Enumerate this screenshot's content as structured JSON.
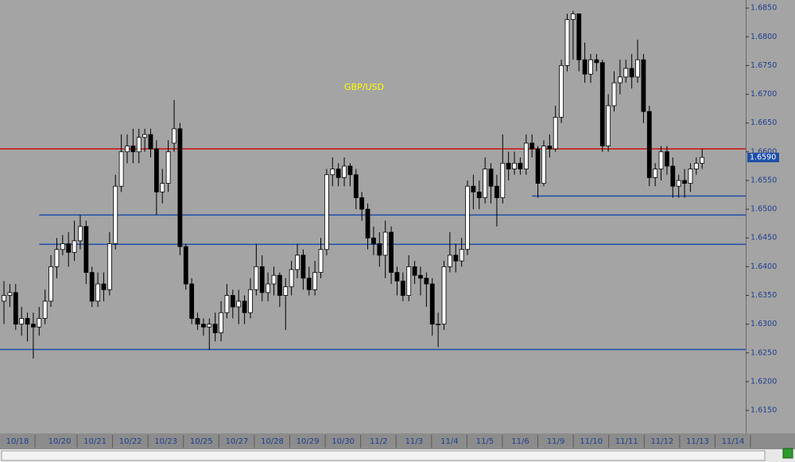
{
  "chart_data": {
    "type": "candlestick",
    "title": "GBP/USD",
    "title_color": "#ffff00",
    "up_color": "#ffffff",
    "down_color": "#000000",
    "ylim": [
      1.611,
      1.6864
    ],
    "yticks": [
      {
        "value": 1.615,
        "label": "1.6150"
      },
      {
        "value": 1.62,
        "label": "1.6200"
      },
      {
        "value": 1.625,
        "label": "1.6250"
      },
      {
        "value": 1.63,
        "label": "1.6300"
      },
      {
        "value": 1.635,
        "label": "1.6350"
      },
      {
        "value": 1.64,
        "label": "1.6400"
      },
      {
        "value": 1.645,
        "label": "1.6450"
      },
      {
        "value": 1.65,
        "label": "1.6500"
      },
      {
        "value": 1.655,
        "label": "1.6550"
      },
      {
        "value": 1.66,
        "label": "1.6600"
      },
      {
        "value": 1.665,
        "label": "1.6650"
      },
      {
        "value": 1.67,
        "label": "1.6700"
      },
      {
        "value": 1.675,
        "label": "1.6750"
      },
      {
        "value": 1.68,
        "label": "1.6800"
      },
      {
        "value": 1.685,
        "label": "1.6850"
      }
    ],
    "last_price": {
      "value": 1.659,
      "label": "1.6590"
    },
    "xlabels": [
      "10/18",
      "10/20",
      "10/21",
      "10/22",
      "10/23",
      "10/25",
      "10/27",
      "10/28",
      "10/29",
      "10/30",
      "11/2",
      "11/3",
      "11/4",
      "11/5",
      "11/6",
      "11/9",
      "11/10",
      "11/11",
      "11/12",
      "11/13",
      "11/14"
    ],
    "levels": [
      {
        "value": 1.6605,
        "color": "#cc1111"
      },
      {
        "value": 1.6523,
        "color": "#1f4fa8"
      },
      {
        "value": 1.649,
        "color": "#1f4fa8"
      },
      {
        "value": 1.6439,
        "color": "#1f4fa8"
      },
      {
        "value": 1.6256,
        "color": "#1f4fa8"
      }
    ],
    "ohlc": [
      [
        1.634,
        1.6375,
        1.63,
        1.635
      ],
      [
        1.635,
        1.637,
        1.633,
        1.6355
      ],
      [
        1.6355,
        1.637,
        1.629,
        1.63
      ],
      [
        1.63,
        1.633,
        1.628,
        1.631
      ],
      [
        1.631,
        1.632,
        1.627,
        1.63
      ],
      [
        1.63,
        1.632,
        1.624,
        1.6295
      ],
      [
        1.6295,
        1.633,
        1.628,
        1.631
      ],
      [
        1.631,
        1.636,
        1.63,
        1.634
      ],
      [
        1.634,
        1.642,
        1.633,
        1.64
      ],
      [
        1.64,
        1.645,
        1.638,
        1.643
      ],
      [
        1.643,
        1.6455,
        1.642,
        1.644
      ],
      [
        1.644,
        1.646,
        1.64,
        1.6425
      ],
      [
        1.6425,
        1.648,
        1.641,
        1.6445
      ],
      [
        1.6445,
        1.649,
        1.643,
        1.647
      ],
      [
        1.647,
        1.648,
        1.637,
        1.639
      ],
      [
        1.639,
        1.64,
        1.633,
        1.634
      ],
      [
        1.634,
        1.639,
        1.633,
        1.637
      ],
      [
        1.637,
        1.639,
        1.634,
        1.636
      ],
      [
        1.636,
        1.646,
        1.635,
        1.644
      ],
      [
        1.644,
        1.656,
        1.643,
        1.654
      ],
      [
        1.654,
        1.663,
        1.653,
        1.66
      ],
      [
        1.66,
        1.663,
        1.658,
        1.661
      ],
      [
        1.661,
        1.664,
        1.658,
        1.66
      ],
      [
        1.66,
        1.664,
        1.658,
        1.6625
      ],
      [
        1.6625,
        1.664,
        1.66,
        1.663
      ],
      [
        1.663,
        1.664,
        1.659,
        1.6605
      ],
      [
        1.6605,
        1.662,
        1.649,
        1.653
      ],
      [
        1.653,
        1.657,
        1.651,
        1.6545
      ],
      [
        1.6545,
        1.662,
        1.653,
        1.66
      ],
      [
        1.6615,
        1.669,
        1.66,
        1.664
      ],
      [
        1.664,
        1.665,
        1.642,
        1.6435
      ],
      [
        1.6435,
        1.644,
        1.636,
        1.637
      ],
      [
        1.637,
        1.638,
        1.63,
        1.631
      ],
      [
        1.631,
        1.632,
        1.629,
        1.63
      ],
      [
        1.63,
        1.631,
        1.628,
        1.6295
      ],
      [
        1.6295,
        1.631,
        1.6255,
        1.63
      ],
      [
        1.63,
        1.632,
        1.627,
        1.6285
      ],
      [
        1.6285,
        1.634,
        1.627,
        1.632
      ],
      [
        1.632,
        1.637,
        1.631,
        1.635
      ],
      [
        1.635,
        1.636,
        1.631,
        1.633
      ],
      [
        1.633,
        1.636,
        1.63,
        1.634
      ],
      [
        1.634,
        1.635,
        1.63,
        1.632
      ],
      [
        1.632,
        1.638,
        1.631,
        1.636
      ],
      [
        1.636,
        1.644,
        1.635,
        1.64
      ],
      [
        1.64,
        1.642,
        1.634,
        1.6355
      ],
      [
        1.6355,
        1.639,
        1.634,
        1.637
      ],
      [
        1.637,
        1.64,
        1.635,
        1.6385
      ],
      [
        1.6385,
        1.639,
        1.633,
        1.635
      ],
      [
        1.635,
        1.638,
        1.629,
        1.6365
      ],
      [
        1.6365,
        1.641,
        1.635,
        1.6395
      ],
      [
        1.6395,
        1.644,
        1.638,
        1.642
      ],
      [
        1.642,
        1.643,
        1.636,
        1.638
      ],
      [
        1.638,
        1.64,
        1.635,
        1.636
      ],
      [
        1.636,
        1.641,
        1.635,
        1.639
      ],
      [
        1.639,
        1.645,
        1.638,
        1.643
      ],
      [
        1.643,
        1.657,
        1.642,
        1.656
      ],
      [
        1.656,
        1.659,
        1.654,
        1.657
      ],
      [
        1.657,
        1.658,
        1.654,
        1.6555
      ],
      [
        1.6555,
        1.659,
        1.654,
        1.6575
      ],
      [
        1.6575,
        1.658,
        1.654,
        1.656
      ],
      [
        1.656,
        1.657,
        1.65,
        1.652
      ],
      [
        1.652,
        1.653,
        1.648,
        1.65
      ],
      [
        1.65,
        1.651,
        1.643,
        1.645
      ],
      [
        1.645,
        1.647,
        1.642,
        1.644
      ],
      [
        1.644,
        1.646,
        1.64,
        1.642
      ],
      [
        1.642,
        1.648,
        1.638,
        1.646
      ],
      [
        1.646,
        1.647,
        1.637,
        1.639
      ],
      [
        1.639,
        1.64,
        1.635,
        1.6375
      ],
      [
        1.6375,
        1.639,
        1.634,
        1.635
      ],
      [
        1.635,
        1.642,
        1.634,
        1.64
      ],
      [
        1.64,
        1.641,
        1.637,
        1.6385
      ],
      [
        1.6385,
        1.64,
        1.635,
        1.638
      ],
      [
        1.638,
        1.639,
        1.633,
        1.637
      ],
      [
        1.637,
        1.638,
        1.628,
        1.63
      ],
      [
        1.63,
        1.632,
        1.626,
        1.63
      ],
      [
        1.63,
        1.641,
        1.629,
        1.64
      ],
      [
        1.64,
        1.646,
        1.639,
        1.642
      ],
      [
        1.642,
        1.644,
        1.639,
        1.641
      ],
      [
        1.641,
        1.645,
        1.64,
        1.643
      ],
      [
        1.643,
        1.655,
        1.642,
        1.654
      ],
      [
        1.654,
        1.656,
        1.65,
        1.653
      ],
      [
        1.653,
        1.655,
        1.65,
        1.652
      ],
      [
        1.652,
        1.659,
        1.651,
        1.657
      ],
      [
        1.657,
        1.658,
        1.651,
        1.654
      ],
      [
        1.654,
        1.656,
        1.647,
        1.652
      ],
      [
        1.652,
        1.663,
        1.651,
        1.658
      ],
      [
        1.658,
        1.66,
        1.655,
        1.657
      ],
      [
        1.657,
        1.66,
        1.656,
        1.658
      ],
      [
        1.658,
        1.659,
        1.656,
        1.657
      ],
      [
        1.657,
        1.663,
        1.656,
        1.6615
      ],
      [
        1.6615,
        1.663,
        1.659,
        1.6605
      ],
      [
        1.6605,
        1.661,
        1.652,
        1.6545
      ],
      [
        1.6545,
        1.662,
        1.654,
        1.661
      ],
      [
        1.661,
        1.663,
        1.659,
        1.6605
      ],
      [
        1.6605,
        1.668,
        1.66,
        1.666
      ],
      [
        1.666,
        1.676,
        1.665,
        1.675
      ],
      [
        1.675,
        1.684,
        1.674,
        1.683
      ],
      [
        1.683,
        1.6845,
        1.676,
        1.684
      ],
      [
        1.684,
        1.684,
        1.674,
        1.676
      ],
      [
        1.676,
        1.679,
        1.672,
        1.6735
      ],
      [
        1.6735,
        1.677,
        1.672,
        1.676
      ],
      [
        1.676,
        1.677,
        1.674,
        1.6755
      ],
      [
        1.6755,
        1.676,
        1.66,
        1.661
      ],
      [
        1.661,
        1.67,
        1.66,
        1.668
      ],
      [
        1.668,
        1.674,
        1.667,
        1.672
      ],
      [
        1.672,
        1.676,
        1.67,
        1.673
      ],
      [
        1.673,
        1.676,
        1.672,
        1.6745
      ],
      [
        1.6745,
        1.677,
        1.671,
        1.673
      ],
      [
        1.673,
        1.6795,
        1.672,
        1.676
      ],
      [
        1.676,
        1.677,
        1.665,
        1.667
      ],
      [
        1.667,
        1.668,
        1.654,
        1.6555
      ],
      [
        1.6555,
        1.658,
        1.654,
        1.657
      ],
      [
        1.657,
        1.661,
        1.655,
        1.66
      ],
      [
        1.66,
        1.661,
        1.656,
        1.6575
      ],
      [
        1.6575,
        1.659,
        1.652,
        1.654
      ],
      [
        1.654,
        1.656,
        1.652,
        1.655
      ],
      [
        1.655,
        1.657,
        1.652,
        1.6545
      ],
      [
        1.6545,
        1.658,
        1.653,
        1.657
      ],
      [
        1.657,
        1.659,
        1.656,
        1.658
      ],
      [
        1.658,
        1.6605,
        1.657,
        1.659
      ]
    ]
  }
}
